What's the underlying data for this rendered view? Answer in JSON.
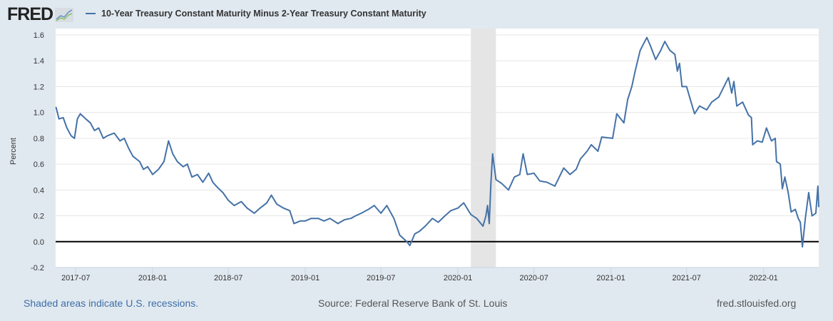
{
  "header": {
    "logo_text": "FRED",
    "legend_label": "10-Year Treasury Constant Maturity Minus 2-Year Treasury Constant Maturity"
  },
  "footer": {
    "recession_note": "Shaded areas indicate U.S. recessions.",
    "source": "Source: Federal Reserve Bank of St. Louis",
    "site": "fred.stlouisfed.org"
  },
  "colors": {
    "series": "#4572a7",
    "recession": "#e5e5e5",
    "grid": "#e6e6e6",
    "zero_line": "#000000"
  },
  "chart_data": {
    "type": "line",
    "title": "10-Year Treasury Constant Maturity Minus 2-Year Treasury Constant Maturity",
    "xlabel": "",
    "ylabel": "Percent",
    "ylim": [
      -0.2,
      1.6
    ],
    "yticks": [
      "-0.2",
      "0.0",
      "0.2",
      "0.4",
      "0.6",
      "0.8",
      "1.0",
      "1.2",
      "1.4",
      "1.6"
    ],
    "xlim": [
      "2017-05-14",
      "2022-05-13"
    ],
    "xticks": [
      "2017-07",
      "2018-01",
      "2018-07",
      "2019-01",
      "2019-07",
      "2020-01",
      "2020-07",
      "2021-01",
      "2021-07",
      "2022-01"
    ],
    "grid": true,
    "legend": "top-left",
    "recessions": [
      [
        "2020-02-01",
        "2020-04-01"
      ]
    ],
    "series": [
      {
        "name": "10-Year Treasury Constant Maturity Minus 2-Year Treasury Constant Maturity",
        "points": [
          [
            "2017-05-15",
            1.04
          ],
          [
            "2017-05-22",
            0.95
          ],
          [
            "2017-06-01",
            0.96
          ],
          [
            "2017-06-10",
            0.88
          ],
          [
            "2017-06-20",
            0.82
          ],
          [
            "2017-06-28",
            0.8
          ],
          [
            "2017-07-05",
            0.95
          ],
          [
            "2017-07-12",
            0.99
          ],
          [
            "2017-07-25",
            0.95
          ],
          [
            "2017-08-05",
            0.92
          ],
          [
            "2017-08-15",
            0.86
          ],
          [
            "2017-08-25",
            0.88
          ],
          [
            "2017-09-05",
            0.8
          ],
          [
            "2017-09-15",
            0.82
          ],
          [
            "2017-10-01",
            0.84
          ],
          [
            "2017-10-15",
            0.78
          ],
          [
            "2017-10-25",
            0.8
          ],
          [
            "2017-11-05",
            0.72
          ],
          [
            "2017-11-15",
            0.66
          ],
          [
            "2017-12-01",
            0.62
          ],
          [
            "2017-12-10",
            0.56
          ],
          [
            "2017-12-20",
            0.58
          ],
          [
            "2018-01-01",
            0.52
          ],
          [
            "2018-01-15",
            0.56
          ],
          [
            "2018-01-28",
            0.62
          ],
          [
            "2018-02-08",
            0.78
          ],
          [
            "2018-02-18",
            0.68
          ],
          [
            "2018-03-01",
            0.62
          ],
          [
            "2018-03-15",
            0.58
          ],
          [
            "2018-03-25",
            0.6
          ],
          [
            "2018-04-05",
            0.5
          ],
          [
            "2018-04-18",
            0.52
          ],
          [
            "2018-05-01",
            0.46
          ],
          [
            "2018-05-15",
            0.53
          ],
          [
            "2018-05-25",
            0.46
          ],
          [
            "2018-06-05",
            0.42
          ],
          [
            "2018-06-18",
            0.38
          ],
          [
            "2018-07-01",
            0.32
          ],
          [
            "2018-07-15",
            0.28
          ],
          [
            "2018-08-01",
            0.31
          ],
          [
            "2018-08-15",
            0.26
          ],
          [
            "2018-09-01",
            0.22
          ],
          [
            "2018-09-15",
            0.26
          ],
          [
            "2018-10-01",
            0.3
          ],
          [
            "2018-10-12",
            0.36
          ],
          [
            "2018-10-25",
            0.29
          ],
          [
            "2018-11-10",
            0.26
          ],
          [
            "2018-11-25",
            0.24
          ],
          [
            "2018-12-05",
            0.14
          ],
          [
            "2018-12-20",
            0.16
          ],
          [
            "2019-01-01",
            0.16
          ],
          [
            "2019-01-15",
            0.18
          ],
          [
            "2019-02-01",
            0.18
          ],
          [
            "2019-02-15",
            0.16
          ],
          [
            "2019-03-01",
            0.18
          ],
          [
            "2019-03-20",
            0.14
          ],
          [
            "2019-04-05",
            0.17
          ],
          [
            "2019-04-20",
            0.18
          ],
          [
            "2019-05-01",
            0.2
          ],
          [
            "2019-05-15",
            0.22
          ],
          [
            "2019-06-01",
            0.25
          ],
          [
            "2019-06-15",
            0.28
          ],
          [
            "2019-07-01",
            0.22
          ],
          [
            "2019-07-15",
            0.28
          ],
          [
            "2019-08-01",
            0.18
          ],
          [
            "2019-08-15",
            0.05
          ],
          [
            "2019-09-01",
            0.0
          ],
          [
            "2019-09-08",
            -0.03
          ],
          [
            "2019-09-20",
            0.06
          ],
          [
            "2019-10-01",
            0.08
          ],
          [
            "2019-10-15",
            0.12
          ],
          [
            "2019-11-01",
            0.18
          ],
          [
            "2019-11-15",
            0.15
          ],
          [
            "2019-12-01",
            0.2
          ],
          [
            "2019-12-15",
            0.24
          ],
          [
            "2020-01-01",
            0.26
          ],
          [
            "2020-01-15",
            0.3
          ],
          [
            "2020-02-01",
            0.21
          ],
          [
            "2020-02-15",
            0.18
          ],
          [
            "2020-03-01",
            0.12
          ],
          [
            "2020-03-08",
            0.2
          ],
          [
            "2020-03-12",
            0.28
          ],
          [
            "2020-03-16",
            0.14
          ],
          [
            "2020-03-20",
            0.45
          ],
          [
            "2020-03-24",
            0.68
          ],
          [
            "2020-04-01",
            0.48
          ],
          [
            "2020-04-15",
            0.45
          ],
          [
            "2020-05-01",
            0.4
          ],
          [
            "2020-05-15",
            0.5
          ],
          [
            "2020-05-28",
            0.52
          ],
          [
            "2020-06-05",
            0.68
          ],
          [
            "2020-06-15",
            0.52
          ],
          [
            "2020-07-01",
            0.53
          ],
          [
            "2020-07-15",
            0.47
          ],
          [
            "2020-08-01",
            0.46
          ],
          [
            "2020-08-20",
            0.43
          ],
          [
            "2020-09-10",
            0.57
          ],
          [
            "2020-09-25",
            0.52
          ],
          [
            "2020-10-10",
            0.56
          ],
          [
            "2020-10-20",
            0.64
          ],
          [
            "2020-11-05",
            0.7
          ],
          [
            "2020-11-15",
            0.75
          ],
          [
            "2020-12-01",
            0.7
          ],
          [
            "2020-12-10",
            0.81
          ],
          [
            "2021-01-05",
            0.8
          ],
          [
            "2021-01-15",
            0.99
          ],
          [
            "2021-02-01",
            0.92
          ],
          [
            "2021-02-10",
            1.1
          ],
          [
            "2021-02-20",
            1.2
          ],
          [
            "2021-02-28",
            1.32
          ],
          [
            "2021-03-12",
            1.48
          ],
          [
            "2021-03-28",
            1.58
          ],
          [
            "2021-04-05",
            1.52
          ],
          [
            "2021-04-18",
            1.41
          ],
          [
            "2021-04-30",
            1.48
          ],
          [
            "2021-05-10",
            1.55
          ],
          [
            "2021-05-22",
            1.48
          ],
          [
            "2021-06-03",
            1.45
          ],
          [
            "2021-06-09",
            1.32
          ],
          [
            "2021-06-14",
            1.38
          ],
          [
            "2021-06-20",
            1.2
          ],
          [
            "2021-07-01",
            1.2
          ],
          [
            "2021-07-09",
            1.11
          ],
          [
            "2021-07-20",
            0.99
          ],
          [
            "2021-08-01",
            1.05
          ],
          [
            "2021-08-18",
            1.02
          ],
          [
            "2021-08-30",
            1.08
          ],
          [
            "2021-09-16",
            1.12
          ],
          [
            "2021-10-09",
            1.27
          ],
          [
            "2021-10-17",
            1.15
          ],
          [
            "2021-10-22",
            1.24
          ],
          [
            "2021-10-29",
            1.05
          ],
          [
            "2021-11-12",
            1.08
          ],
          [
            "2021-11-26",
            0.98
          ],
          [
            "2021-12-03",
            0.96
          ],
          [
            "2021-12-06",
            0.75
          ],
          [
            "2021-12-17",
            0.78
          ],
          [
            "2021-12-29",
            0.77
          ],
          [
            "2022-01-08",
            0.88
          ],
          [
            "2022-01-20",
            0.78
          ],
          [
            "2022-01-29",
            0.8
          ],
          [
            "2022-02-01",
            0.62
          ],
          [
            "2022-02-10",
            0.6
          ],
          [
            "2022-02-15",
            0.41
          ],
          [
            "2022-02-21",
            0.5
          ],
          [
            "2022-03-01",
            0.38
          ],
          [
            "2022-03-08",
            0.23
          ],
          [
            "2022-03-18",
            0.25
          ],
          [
            "2022-03-25",
            0.18
          ],
          [
            "2022-03-30",
            0.15
          ],
          [
            "2022-04-04",
            -0.04
          ],
          [
            "2022-04-11",
            0.18
          ],
          [
            "2022-04-19",
            0.38
          ],
          [
            "2022-04-27",
            0.2
          ],
          [
            "2022-05-06",
            0.22
          ],
          [
            "2022-05-11",
            0.43
          ],
          [
            "2022-05-13",
            0.27
          ]
        ]
      }
    ]
  }
}
